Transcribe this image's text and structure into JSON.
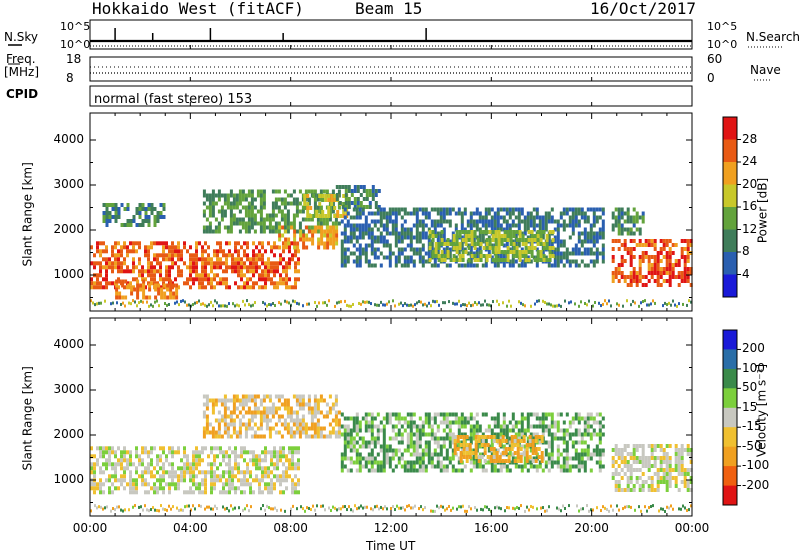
{
  "header": {
    "title": "Hokkaido West (fitACF)",
    "beam": "Beam 15",
    "date": "16/Oct/2017"
  },
  "top_panels": {
    "nsky_label": "N.Sky",
    "nsearch_label": "N.Search",
    "noise_ticks_left": [
      "10^5",
      "10^0"
    ],
    "noise_ticks_right": [
      "10^5",
      "10^0"
    ],
    "freq_label": "Freq.",
    "freq_unit": "[MHz]",
    "freq_ticks": [
      "18",
      "8"
    ],
    "nave_label": "Nave",
    "nave_ticks": [
      "60",
      "0"
    ],
    "cpid_label": "CPID",
    "cpid_text": "normal (fast stereo) 153"
  },
  "chart_data": [
    {
      "type": "heatmap",
      "title": "",
      "quantity": "Power",
      "xlabel": "",
      "ylabel": "Slant Range [km]",
      "x_ticks": [
        "00:00",
        "04:00",
        "08:00",
        "12:00",
        "16:00",
        "20:00",
        "00:00"
      ],
      "y_ticks": [
        "1000",
        "2000",
        "3000",
        "4000"
      ],
      "ylim": [
        200,
        4600
      ],
      "xlim_hours": [
        0,
        24
      ],
      "colorbar_label": "Power [dB]",
      "colorbar_ticks": [
        "4",
        "8",
        "12",
        "16",
        "20",
        "24",
        "28"
      ],
      "colorbar_range": [
        0,
        32
      ],
      "colors": [
        "#1a1ad8",
        "#2a5fb0",
        "#3f7d5a",
        "#63a33c",
        "#c8c82a",
        "#f0a020",
        "#e85a14",
        "#e01414"
      ],
      "echo_regions": [
        {
          "t0": 0.0,
          "t1": 8.3,
          "r0": 700,
          "r1": 1750,
          "value": 26
        },
        {
          "t0": 1.0,
          "t1": 3.5,
          "r0": 500,
          "r1": 900,
          "value": 24
        },
        {
          "t0": 0.5,
          "t1": 3.0,
          "r0": 2100,
          "r1": 2600,
          "value": 10
        },
        {
          "t0": 4.5,
          "t1": 10.0,
          "r0": 2000,
          "r1": 2900,
          "value": 12
        },
        {
          "t0": 8.5,
          "t1": 10.2,
          "r0": 2300,
          "r1": 2800,
          "value": 18
        },
        {
          "t0": 7.5,
          "t1": 9.8,
          "r0": 1600,
          "r1": 2100,
          "value": 22
        },
        {
          "t0": 9.8,
          "t1": 11.5,
          "r0": 2500,
          "r1": 3000,
          "value": 10
        },
        {
          "t0": 10.0,
          "t1": 20.5,
          "r0": 1200,
          "r1": 2500,
          "value": 8
        },
        {
          "t0": 13.5,
          "t1": 18.5,
          "r0": 1300,
          "r1": 2000,
          "value": 16
        },
        {
          "t0": 20.8,
          "t1": 24.0,
          "r0": 800,
          "r1": 1800,
          "value": 27
        },
        {
          "t0": 20.8,
          "t1": 22.0,
          "r0": 1900,
          "r1": 2500,
          "value": 11
        }
      ]
    },
    {
      "type": "heatmap",
      "title": "",
      "quantity": "Velocity",
      "xlabel": "Time UT",
      "ylabel": "Slant Range [km]",
      "x_ticks": [
        "00:00",
        "04:00",
        "08:00",
        "12:00",
        "16:00",
        "20:00",
        "00:00"
      ],
      "y_ticks": [
        "1000",
        "2000",
        "3000",
        "4000"
      ],
      "ylim": [
        200,
        4600
      ],
      "xlim_hours": [
        0,
        24
      ],
      "colorbar_label": "Velocity [m s⁻¹]",
      "colorbar_ticks": [
        "200",
        "100",
        "50",
        "15",
        "-15",
        "-50",
        "-100",
        "-200"
      ],
      "colors": [
        "#1a1ad8",
        "#2a6ea8",
        "#3a8a4a",
        "#7ccf3c",
        "#c8c8c0",
        "#f0c030",
        "#f0a020",
        "#f06010",
        "#e01414"
      ],
      "echo_regions": [
        {
          "t0": 0.0,
          "t1": 8.3,
          "r0": 700,
          "r1": 1750,
          "value": 0
        },
        {
          "t0": 4.5,
          "t1": 10.0,
          "r0": 2000,
          "r1": 2900,
          "value": -20
        },
        {
          "t0": 10.0,
          "t1": 20.5,
          "r0": 1200,
          "r1": 2500,
          "value": 30
        },
        {
          "t0": 14.5,
          "t1": 18.0,
          "r0": 1400,
          "r1": 2000,
          "value": -40
        },
        {
          "t0": 20.8,
          "t1": 24.0,
          "r0": 800,
          "r1": 1800,
          "value": 0
        }
      ]
    }
  ]
}
